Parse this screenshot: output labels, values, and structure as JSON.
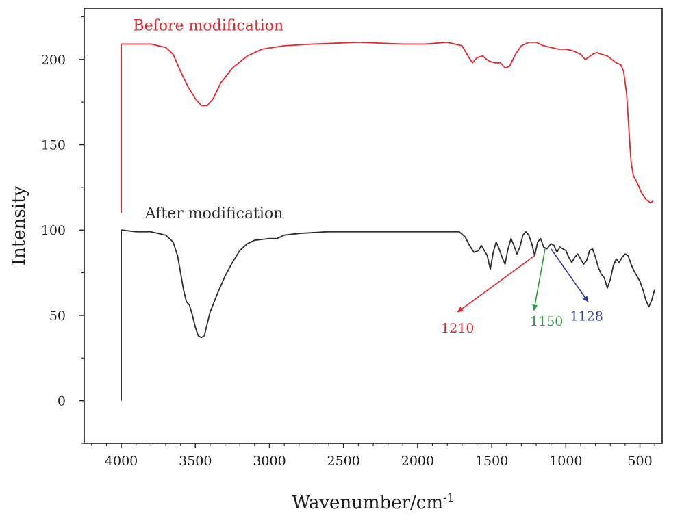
{
  "chart_data": {
    "type": "line",
    "xlabel": "Wavenumber/cm",
    "xlabel_sup": "-1",
    "ylabel": "Intensity",
    "xlim": [
      4250,
      350
    ],
    "ylim": [
      -25,
      230
    ],
    "x_ticks": [
      4000,
      3500,
      3000,
      2500,
      2000,
      1500,
      1000,
      500
    ],
    "y_ticks": [
      0,
      50,
      100,
      150,
      200
    ],
    "grid": false,
    "series": [
      {
        "name": "Before modification",
        "color": "#e8262c",
        "label_at": [
          3920,
          217
        ],
        "points": [
          [
            4000,
            110
          ],
          [
            4000,
            209
          ],
          [
            3900,
            209
          ],
          [
            3800,
            209
          ],
          [
            3700,
            207
          ],
          [
            3650,
            203
          ],
          [
            3600,
            193
          ],
          [
            3550,
            184
          ],
          [
            3500,
            177
          ],
          [
            3460,
            173
          ],
          [
            3420,
            173
          ],
          [
            3380,
            177
          ],
          [
            3330,
            186
          ],
          [
            3250,
            195
          ],
          [
            3150,
            202
          ],
          [
            3050,
            206
          ],
          [
            2900,
            208
          ],
          [
            2700,
            209
          ],
          [
            2400,
            210
          ],
          [
            2100,
            209
          ],
          [
            1950,
            209
          ],
          [
            1800,
            210
          ],
          [
            1700,
            208
          ],
          [
            1660,
            202
          ],
          [
            1630,
            198
          ],
          [
            1600,
            201
          ],
          [
            1560,
            202
          ],
          [
            1520,
            199
          ],
          [
            1480,
            198
          ],
          [
            1440,
            198
          ],
          [
            1410,
            195
          ],
          [
            1380,
            196
          ],
          [
            1340,
            203
          ],
          [
            1300,
            208
          ],
          [
            1250,
            210
          ],
          [
            1200,
            210
          ],
          [
            1150,
            208
          ],
          [
            1100,
            207
          ],
          [
            1050,
            206
          ],
          [
            1000,
            206
          ],
          [
            950,
            205
          ],
          [
            900,
            203
          ],
          [
            870,
            200
          ],
          [
            850,
            201
          ],
          [
            820,
            203
          ],
          [
            790,
            204
          ],
          [
            760,
            203
          ],
          [
            720,
            202
          ],
          [
            690,
            200
          ],
          [
            660,
            198
          ],
          [
            630,
            197
          ],
          [
            610,
            193
          ],
          [
            590,
            180
          ],
          [
            575,
            160
          ],
          [
            560,
            140
          ],
          [
            545,
            132
          ],
          [
            520,
            128
          ],
          [
            490,
            122
          ],
          [
            460,
            118
          ],
          [
            430,
            116
          ],
          [
            410,
            117
          ]
        ]
      },
      {
        "name": "After modification",
        "color": "#2d2d2d",
        "label_at": [
          3840,
          107
        ],
        "points": [
          [
            4000,
            0
          ],
          [
            4000,
            100
          ],
          [
            3900,
            99
          ],
          [
            3800,
            99
          ],
          [
            3700,
            97
          ],
          [
            3650,
            93
          ],
          [
            3620,
            85
          ],
          [
            3600,
            75
          ],
          [
            3580,
            65
          ],
          [
            3560,
            58
          ],
          [
            3540,
            56
          ],
          [
            3520,
            50
          ],
          [
            3500,
            43
          ],
          [
            3480,
            38
          ],
          [
            3460,
            37
          ],
          [
            3440,
            38
          ],
          [
            3420,
            45
          ],
          [
            3400,
            52
          ],
          [
            3350,
            63
          ],
          [
            3300,
            73
          ],
          [
            3250,
            81
          ],
          [
            3200,
            88
          ],
          [
            3150,
            92
          ],
          [
            3100,
            94
          ],
          [
            3000,
            95
          ],
          [
            2950,
            95
          ],
          [
            2900,
            97
          ],
          [
            2800,
            98
          ],
          [
            2600,
            99
          ],
          [
            2400,
            99
          ],
          [
            2200,
            99
          ],
          [
            2000,
            99
          ],
          [
            1900,
            99
          ],
          [
            1800,
            99
          ],
          [
            1720,
            99
          ],
          [
            1680,
            96
          ],
          [
            1650,
            91
          ],
          [
            1620,
            87
          ],
          [
            1590,
            88
          ],
          [
            1570,
            91
          ],
          [
            1550,
            88
          ],
          [
            1530,
            85
          ],
          [
            1510,
            77
          ],
          [
            1490,
            87
          ],
          [
            1470,
            93
          ],
          [
            1450,
            89
          ],
          [
            1430,
            84
          ],
          [
            1410,
            80
          ],
          [
            1390,
            89
          ],
          [
            1370,
            95
          ],
          [
            1350,
            91
          ],
          [
            1330,
            86
          ],
          [
            1310,
            90
          ],
          [
            1290,
            97
          ],
          [
            1270,
            99
          ],
          [
            1250,
            97
          ],
          [
            1230,
            92
          ],
          [
            1210,
            85
          ],
          [
            1190,
            93
          ],
          [
            1170,
            95
          ],
          [
            1150,
            90
          ],
          [
            1128,
            89
          ],
          [
            1100,
            92
          ],
          [
            1080,
            91
          ],
          [
            1060,
            87
          ],
          [
            1040,
            90
          ],
          [
            1020,
            89
          ],
          [
            1000,
            88
          ],
          [
            980,
            84
          ],
          [
            960,
            81
          ],
          [
            940,
            84
          ],
          [
            920,
            86
          ],
          [
            900,
            83
          ],
          [
            880,
            80
          ],
          [
            860,
            82
          ],
          [
            840,
            88
          ],
          [
            820,
            89
          ],
          [
            800,
            84
          ],
          [
            780,
            78
          ],
          [
            760,
            74
          ],
          [
            740,
            72
          ],
          [
            720,
            66
          ],
          [
            700,
            71
          ],
          [
            680,
            79
          ],
          [
            660,
            83
          ],
          [
            640,
            81
          ],
          [
            620,
            84
          ],
          [
            600,
            86
          ],
          [
            580,
            85
          ],
          [
            560,
            80
          ],
          [
            540,
            76
          ],
          [
            520,
            73
          ],
          [
            500,
            70
          ],
          [
            480,
            65
          ],
          [
            460,
            59
          ],
          [
            440,
            55
          ],
          [
            420,
            59
          ],
          [
            405,
            64
          ],
          [
            400,
            65
          ]
        ]
      }
    ],
    "annotations": [
      {
        "label": "1210",
        "color": "#e8262c",
        "from": [
          1210,
          85
        ],
        "to": [
          1730,
          52
        ],
        "label_at": [
          1730,
          40
        ]
      },
      {
        "label": "1150",
        "color": "#2e9a3a",
        "from": [
          1140,
          89
        ],
        "to": [
          1215,
          53
        ],
        "label_at": [
          1130,
          44
        ]
      },
      {
        "label": "1128",
        "color": "#2f3aa8",
        "from": [
          1100,
          89
        ],
        "to": [
          850,
          58
        ],
        "label_at": [
          860,
          47
        ]
      }
    ]
  }
}
